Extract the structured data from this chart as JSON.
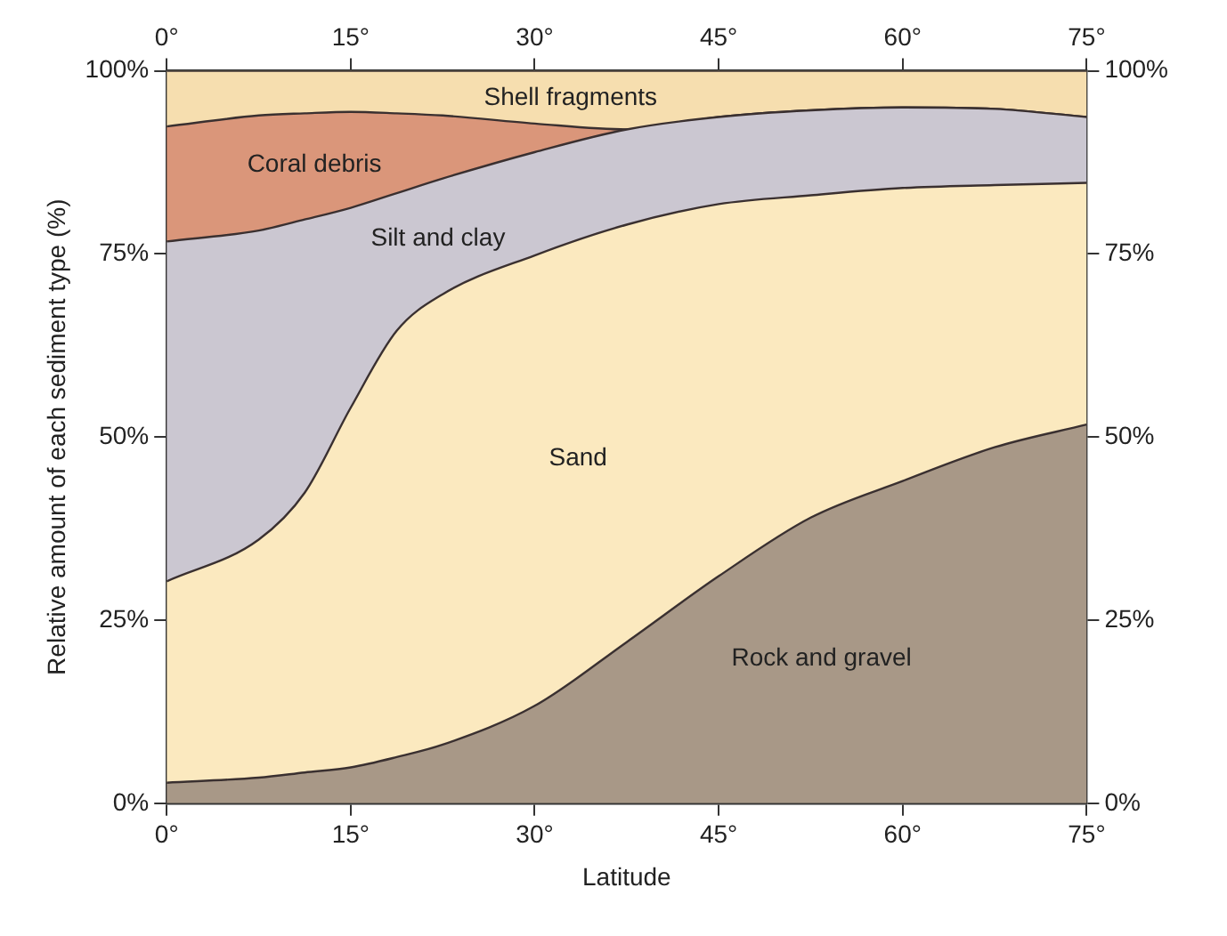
{
  "chart_data": {
    "type": "area",
    "stacked": true,
    "xlabel": "Latitude",
    "ylabel": "Relative amount of each sediment type (%)",
    "x": [
      0,
      7.5,
      11.25,
      15,
      18.75,
      22.5,
      30,
      37.5,
      45,
      52.5,
      60,
      67.5,
      75
    ],
    "series": [
      {
        "name": "Rock and gravel",
        "color": "#a89887",
        "values": [
          2.8,
          3.5,
          4.2,
          4.9,
          6.3,
          8,
          13.3,
          22,
          31,
          39,
          44,
          48.6,
          51.7
        ]
      },
      {
        "name": "Sand",
        "color": "#fbe9bf",
        "values": [
          27.5,
          32.5,
          38.2,
          49.1,
          58.2,
          61.5,
          61.5,
          57,
          50.8,
          44,
          40,
          35.8,
          33
        ]
      },
      {
        "name": "Silt and clay",
        "color": "#cbc7d1",
        "values": [
          46.4,
          42.2,
          37.3,
          27.3,
          18.8,
          15.8,
          14.1,
          13,
          11.9,
          11.6,
          11,
          10.4,
          9
        ]
      },
      {
        "name": "Coral debris",
        "color": "#da967a",
        "values": [
          15.7,
          15.7,
          14.5,
          13.1,
          10.9,
          8.6,
          3.9,
          0,
          0,
          0,
          0,
          0,
          0
        ]
      },
      {
        "name": "Shell fragments",
        "color": "#f6deaf",
        "values": [
          7.6,
          6.1,
          5.8,
          5.6,
          5.8,
          6.1,
          7.2,
          8,
          6.3,
          5.4,
          5,
          5.2,
          6.3
        ]
      }
    ],
    "xlim": [
      0,
      75
    ],
    "xticks": [
      {
        "value": 0,
        "label": "0°"
      },
      {
        "value": 15,
        "label": "15°"
      },
      {
        "value": 30,
        "label": "30°"
      },
      {
        "value": 45,
        "label": "45°"
      },
      {
        "value": 60,
        "label": "60°"
      },
      {
        "value": 75,
        "label": "75°"
      }
    ],
    "x2lim": [
      0,
      75
    ],
    "x2ticks": [
      {
        "value": 0,
        "label": "0°"
      },
      {
        "value": 15,
        "label": "15°"
      },
      {
        "value": 30,
        "label": "30°"
      },
      {
        "value": 45,
        "label": "45°"
      },
      {
        "value": 60,
        "label": "60°"
      },
      {
        "value": 75,
        "label": "75°"
      }
    ],
    "ylim": [
      0,
      100
    ],
    "yticks": [
      {
        "value": 0,
        "label": "0%"
      },
      {
        "value": 25,
        "label": "25%"
      },
      {
        "value": 50,
        "label": "50%"
      },
      {
        "value": 75,
        "label": "75%"
      },
      {
        "value": 100,
        "label": "100%"
      }
    ],
    "y2lim": [
      0,
      100
    ],
    "y2ticks": [
      {
        "value": 0,
        "label": "0%"
      },
      {
        "value": 25,
        "label": "25%"
      },
      {
        "value": 50,
        "label": "50%"
      },
      {
        "value": 75,
        "label": "75%"
      },
      {
        "value": 100,
        "label": "100%"
      }
    ],
    "legend": false
  }
}
